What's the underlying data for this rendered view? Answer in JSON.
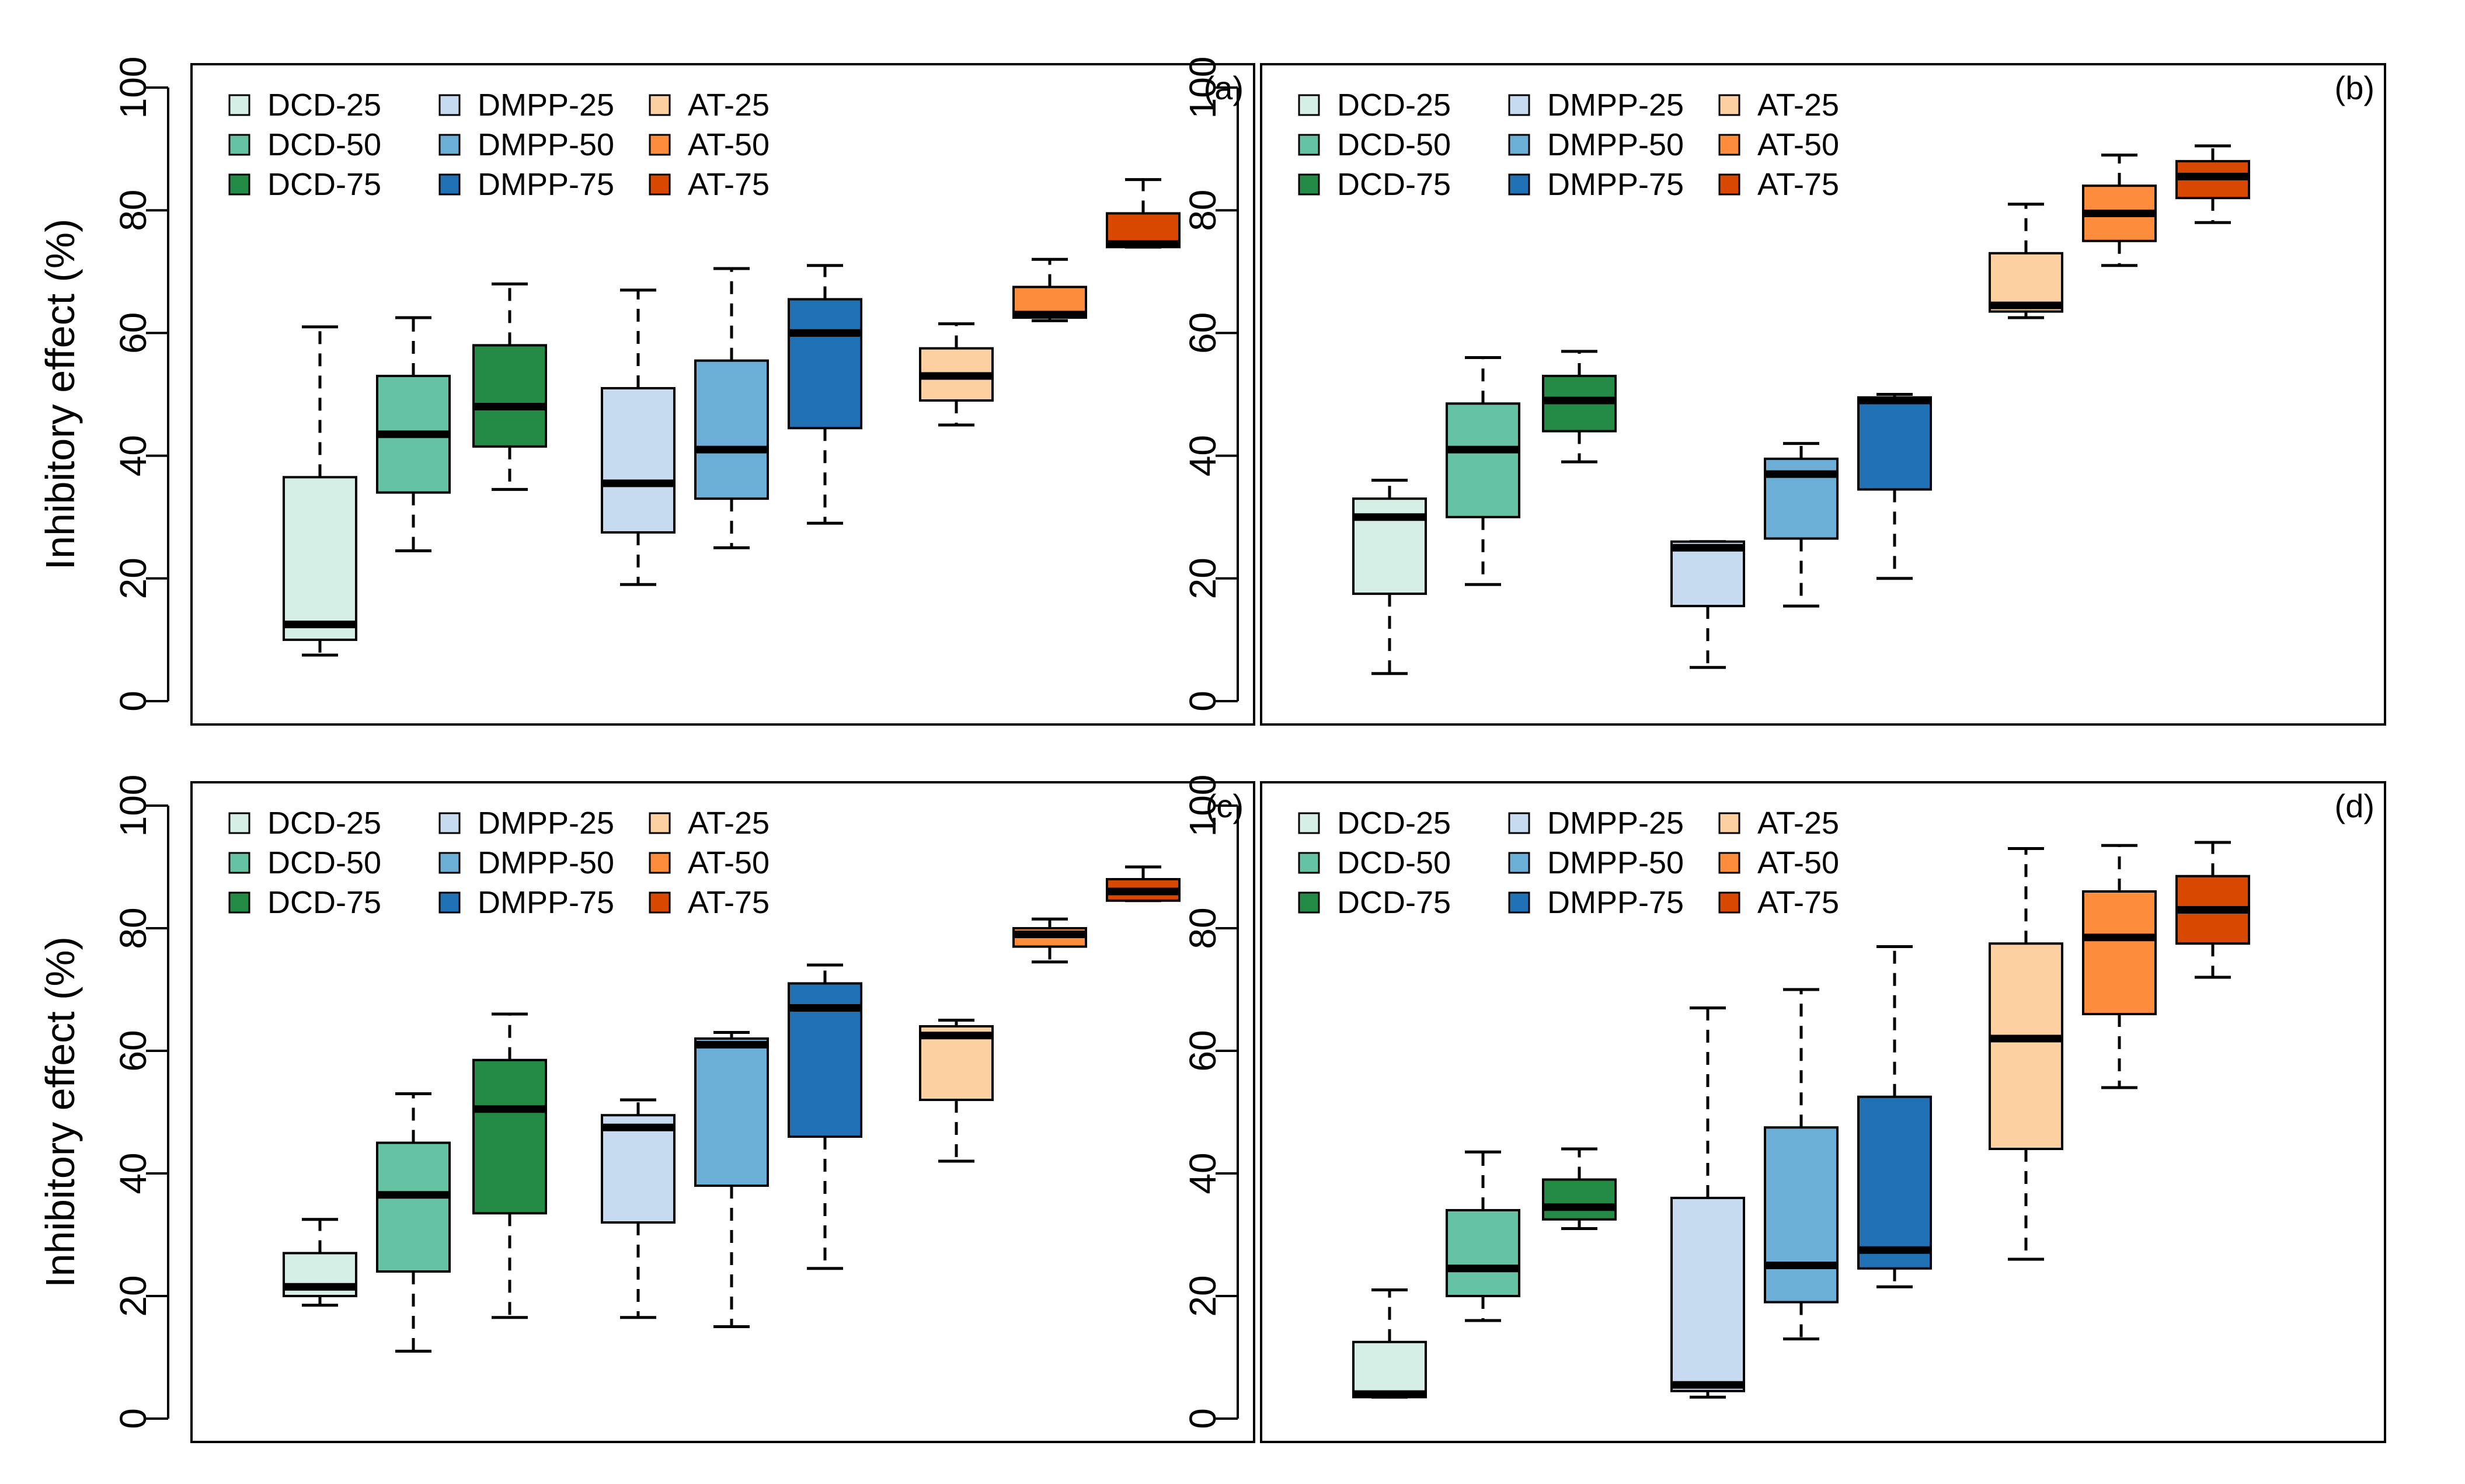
{
  "figure": {
    "ylabel": "Inhibitory effect (%)",
    "ylim": [
      0,
      100
    ],
    "yticks": [
      0,
      20,
      40,
      60,
      80,
      100
    ],
    "legend": [
      "DCD-25",
      "DCD-50",
      "DCD-75",
      "DMPP-25",
      "DMPP-50",
      "DMPP-75",
      "AT-25",
      "AT-50",
      "AT-75"
    ],
    "legend_placement": "top-left",
    "colors": {
      "DCD-25": "#d6efe6",
      "DCD-50": "#66c2a4",
      "DCD-75": "#238b45",
      "DMPP-25": "#c6dbef",
      "DMPP-50": "#6baed6",
      "DMPP-75": "#2171b5",
      "AT-25": "#fdd0a2",
      "AT-50": "#fd8d3c",
      "AT-75": "#d94801"
    }
  },
  "chart_data": [
    {
      "type": "box",
      "panel_label": "(a)",
      "ylabel": "Inhibitory effect (%)",
      "ylim": [
        0,
        100
      ],
      "groups": [
        {
          "name": "DCD-25",
          "min": 7.5,
          "q1": 10,
          "median": 12.5,
          "q3": 36.5,
          "max": 61
        },
        {
          "name": "DCD-50",
          "min": 24.5,
          "q1": 34,
          "median": 43.5,
          "q3": 53,
          "max": 62.5
        },
        {
          "name": "DCD-75",
          "min": 34.5,
          "q1": 41.5,
          "median": 48,
          "q3": 58,
          "max": 68
        },
        {
          "name": "DMPP-25",
          "min": 19,
          "q1": 27.5,
          "median": 35.5,
          "q3": 51,
          "max": 67
        },
        {
          "name": "DMPP-50",
          "min": 25,
          "q1": 33,
          "median": 41,
          "q3": 55.5,
          "max": 70.5
        },
        {
          "name": "DMPP-75",
          "min": 29,
          "q1": 44.5,
          "median": 60,
          "q3": 65.5,
          "max": 71
        },
        {
          "name": "AT-25",
          "min": 45,
          "q1": 49,
          "median": 53,
          "q3": 57.5,
          "max": 61.5
        },
        {
          "name": "AT-50",
          "min": 62,
          "q1": 62.5,
          "median": 63,
          "q3": 67.5,
          "max": 72
        },
        {
          "name": "AT-75",
          "min": 74,
          "q1": 74,
          "median": 74.5,
          "q3": 79.5,
          "max": 85
        }
      ]
    },
    {
      "type": "box",
      "panel_label": "(b)",
      "ylabel": "",
      "ylim": [
        0,
        100
      ],
      "groups": [
        {
          "name": "DCD-25",
          "min": 4.5,
          "q1": 17.5,
          "median": 30,
          "q3": 33,
          "max": 36
        },
        {
          "name": "DCD-50",
          "min": 19,
          "q1": 30,
          "median": 41,
          "q3": 48.5,
          "max": 56
        },
        {
          "name": "DCD-75",
          "min": 39,
          "q1": 44,
          "median": 49,
          "q3": 53,
          "max": 57
        },
        {
          "name": "DMPP-25",
          "min": 5.5,
          "q1": 15.5,
          "median": 25,
          "q3": 26,
          "max": 26
        },
        {
          "name": "DMPP-50",
          "min": 15.5,
          "q1": 26.5,
          "median": 37,
          "q3": 39.5,
          "max": 42
        },
        {
          "name": "DMPP-75",
          "min": 20,
          "q1": 34.5,
          "median": 49,
          "q3": 49.5,
          "max": 50
        },
        {
          "name": "AT-25",
          "min": 62.5,
          "q1": 63.5,
          "median": 64.5,
          "q3": 73,
          "max": 81
        },
        {
          "name": "AT-50",
          "min": 71,
          "q1": 75,
          "median": 79.5,
          "q3": 84,
          "max": 89
        },
        {
          "name": "AT-75",
          "min": 78,
          "q1": 82,
          "median": 85.5,
          "q3": 88,
          "max": 90.5
        }
      ]
    },
    {
      "type": "box",
      "panel_label": "(c)",
      "ylabel": "Inhibitory effect (%)",
      "ylim": [
        0,
        100
      ],
      "groups": [
        {
          "name": "DCD-25",
          "min": 18.5,
          "q1": 20,
          "median": 21.5,
          "q3": 27,
          "max": 32.5
        },
        {
          "name": "DCD-50",
          "min": 11,
          "q1": 24,
          "median": 36.5,
          "q3": 45,
          "max": 53
        },
        {
          "name": "DCD-75",
          "min": 16.5,
          "q1": 33.5,
          "median": 50.5,
          "q3": 58.5,
          "max": 66
        },
        {
          "name": "DMPP-25",
          "min": 16.5,
          "q1": 32,
          "median": 47.5,
          "q3": 49.5,
          "max": 52
        },
        {
          "name": "DMPP-50",
          "min": 15,
          "q1": 38,
          "median": 61,
          "q3": 62,
          "max": 63
        },
        {
          "name": "DMPP-75",
          "min": 24.5,
          "q1": 46,
          "median": 67,
          "q3": 71,
          "max": 74
        },
        {
          "name": "AT-25",
          "min": 42,
          "q1": 52,
          "median": 62.5,
          "q3": 64,
          "max": 65
        },
        {
          "name": "AT-50",
          "min": 74.5,
          "q1": 77,
          "median": 79,
          "q3": 80,
          "max": 81.5
        },
        {
          "name": "AT-75",
          "min": 84.5,
          "q1": 84.5,
          "median": 86,
          "q3": 88,
          "max": 90
        }
      ]
    },
    {
      "type": "box",
      "panel_label": "(d)",
      "ylabel": "",
      "ylim": [
        0,
        100
      ],
      "groups": [
        {
          "name": "DCD-25",
          "min": 3.5,
          "q1": 3.5,
          "median": 4,
          "q3": 12.5,
          "max": 21
        },
        {
          "name": "DCD-50",
          "min": 16,
          "q1": 20,
          "median": 24.5,
          "q3": 34,
          "max": 43.5
        },
        {
          "name": "DCD-75",
          "min": 31,
          "q1": 32.5,
          "median": 34.5,
          "q3": 39,
          "max": 44
        },
        {
          "name": "DMPP-25",
          "min": 3.5,
          "q1": 4.5,
          "median": 5.5,
          "q3": 36,
          "max": 67
        },
        {
          "name": "DMPP-50",
          "min": 13,
          "q1": 19,
          "median": 25,
          "q3": 47.5,
          "max": 70
        },
        {
          "name": "DMPP-75",
          "min": 21.5,
          "q1": 24.5,
          "median": 27.5,
          "q3": 52.5,
          "max": 77
        },
        {
          "name": "AT-25",
          "min": 26,
          "q1": 44,
          "median": 62,
          "q3": 77.5,
          "max": 93
        },
        {
          "name": "AT-50",
          "min": 54,
          "q1": 66,
          "median": 78.5,
          "q3": 86,
          "max": 93.5
        },
        {
          "name": "AT-75",
          "min": 72,
          "q1": 77.5,
          "median": 83,
          "q3": 88.5,
          "max": 94
        }
      ]
    }
  ]
}
